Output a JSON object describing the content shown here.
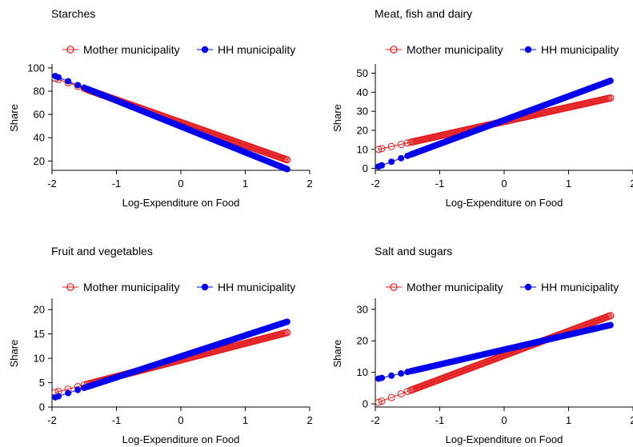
{
  "chart_data": [
    {
      "type": "line",
      "title": "Starches",
      "xlabel": "Log-Expenditure on Food",
      "ylabel": "Share",
      "xlim": [
        -2,
        2
      ],
      "xticks": [
        "-2",
        "-1",
        "0",
        "1",
        "2"
      ],
      "ylim": [
        12,
        102
      ],
      "yticks": [
        "20",
        "40",
        "60",
        "80",
        "100"
      ],
      "legend": "top",
      "x_range": [
        -1.95,
        1.65
      ],
      "series": [
        {
          "name": "Mother municipality",
          "marker": "hollow-circle",
          "color": "#e41a1c",
          "y_start": 91,
          "y_end": 21
        },
        {
          "name": "HH municipality",
          "marker": "filled-circle",
          "color": "#0000ee",
          "y_start": 93,
          "y_end": 13
        }
      ]
    },
    {
      "type": "line",
      "title": "Meat, fish and dairy",
      "xlabel": "Log-Expenditure on Food",
      "ylabel": "Share",
      "xlim": [
        -2,
        2
      ],
      "xticks": [
        "-2",
        "-1",
        "0",
        "1",
        "2"
      ],
      "ylim": [
        -1,
        54
      ],
      "yticks": [
        "0",
        "10",
        "20",
        "30",
        "40",
        "50"
      ],
      "legend": "top",
      "x_range": [
        -1.95,
        1.65
      ],
      "series": [
        {
          "name": "Mother municipality",
          "marker": "hollow-circle",
          "color": "#e41a1c",
          "y_start": 10,
          "y_end": 37
        },
        {
          "name": "HH municipality",
          "marker": "filled-circle",
          "color": "#0000ee",
          "y_start": 1,
          "y_end": 46
        }
      ]
    },
    {
      "type": "line",
      "title": "Fruit and vegetables",
      "xlabel": "Log-Expenditure on Food",
      "ylabel": "Share",
      "xlim": [
        -2,
        2
      ],
      "xticks": [
        "-2",
        "-1",
        "0",
        "1",
        "2"
      ],
      "ylim": [
        0,
        22
      ],
      "yticks": [
        "0",
        "5",
        "10",
        "15",
        "20"
      ],
      "legend": "top",
      "x_range": [
        -1.95,
        1.65
      ],
      "series": [
        {
          "name": "Mother municipality",
          "marker": "hollow-circle",
          "color": "#e41a1c",
          "y_start": 3,
          "y_end": 15.3
        },
        {
          "name": "HH municipality",
          "marker": "filled-circle",
          "color": "#0000ee",
          "y_start": 2,
          "y_end": 17.5
        }
      ]
    },
    {
      "type": "line",
      "title": "Salt and sugars",
      "xlabel": "Log-Expenditure on Food",
      "ylabel": "Share",
      "xlim": [
        -2,
        2
      ],
      "xticks": [
        "-2",
        "-1",
        "0",
        "1",
        "2"
      ],
      "ylim": [
        -1,
        33
      ],
      "yticks": [
        "0",
        "10",
        "20",
        "30"
      ],
      "legend": "top",
      "x_range": [
        -1.95,
        1.65
      ],
      "series": [
        {
          "name": "Mother municipality",
          "marker": "hollow-circle",
          "color": "#e41a1c",
          "y_start": 0.5,
          "y_end": 28
        },
        {
          "name": "HH municipality",
          "marker": "filled-circle",
          "color": "#0000ee",
          "y_start": 8,
          "y_end": 25
        }
      ]
    }
  ]
}
